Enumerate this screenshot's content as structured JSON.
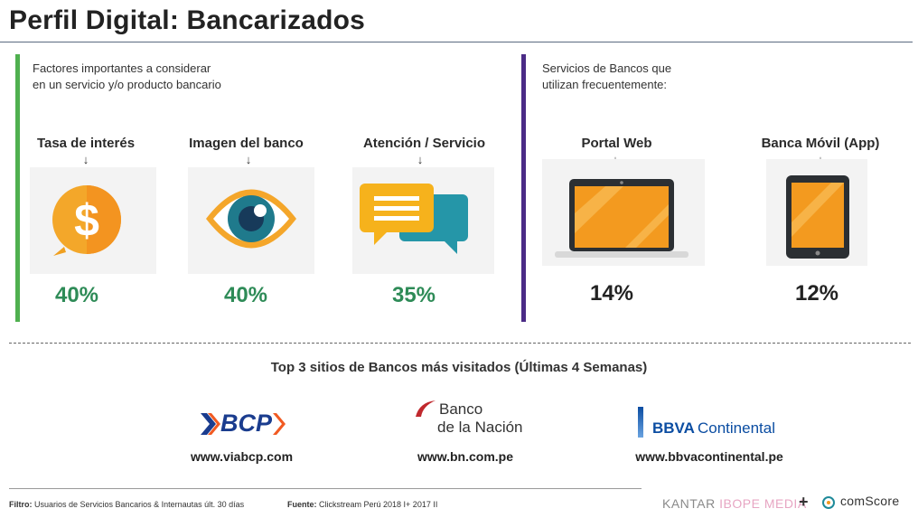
{
  "title": "Perfil Digital: Bancarizados",
  "left_panel": {
    "intro": "Factores importantes a considerar\nen un servicio y/o producto bancario",
    "factors": [
      {
        "label": "Tasa de interés",
        "icon": "dollar-speech-icon",
        "percent": "40%"
      },
      {
        "label": "Imagen del banco",
        "icon": "eye-icon",
        "percent": "40%"
      },
      {
        "label": "Atención / Servicio",
        "icon": "chat-bubbles-icon",
        "percent": "35%"
      }
    ]
  },
  "right_panel": {
    "intro": "Servicios de Bancos que\nutilizan frecuentemente:",
    "services": [
      {
        "label": "Portal Web",
        "icon": "laptop-icon",
        "percent": "14%"
      },
      {
        "label": "Banca Móvil (App)",
        "icon": "tablet-icon",
        "percent": "12%"
      }
    ]
  },
  "top_sites": {
    "title": "Top 3 sitios de Bancos más visitados (Últimas 4 Semanas)",
    "banks": [
      {
        "logo_text": "BCP",
        "url": "www.viabcp.com"
      },
      {
        "logo_line1": "Banco",
        "logo_line2": "de la Nación",
        "url": "www.bn.com.pe"
      },
      {
        "logo_bold": "BBVA",
        "logo_light": "Continental",
        "url": "www.bbvacontinental.pe"
      }
    ]
  },
  "footer": {
    "filter_label": "Filtro:",
    "filter_text": "Usuarios de Servicios Bancarios & Internautas últ. 30 días",
    "source_label": "Fuente:",
    "source_text": "Clickstream Perú 2018 I+ 2017 II",
    "kantar": "KANTAR",
    "ibope": "IBOPE MEDIA",
    "plus": "+",
    "comscore": "comScore"
  },
  "colors": {
    "green_bar": "#4fb04f",
    "purple_bar": "#4b2b86",
    "percent_green": "#2e8b57",
    "orange": "#f39c1f",
    "teal": "#1f8a99",
    "bcp_blue": "#1a3c8e",
    "bcp_orange": "#f15a22",
    "bbva_blue": "#0b4da2",
    "bn_red": "#c0282d"
  }
}
